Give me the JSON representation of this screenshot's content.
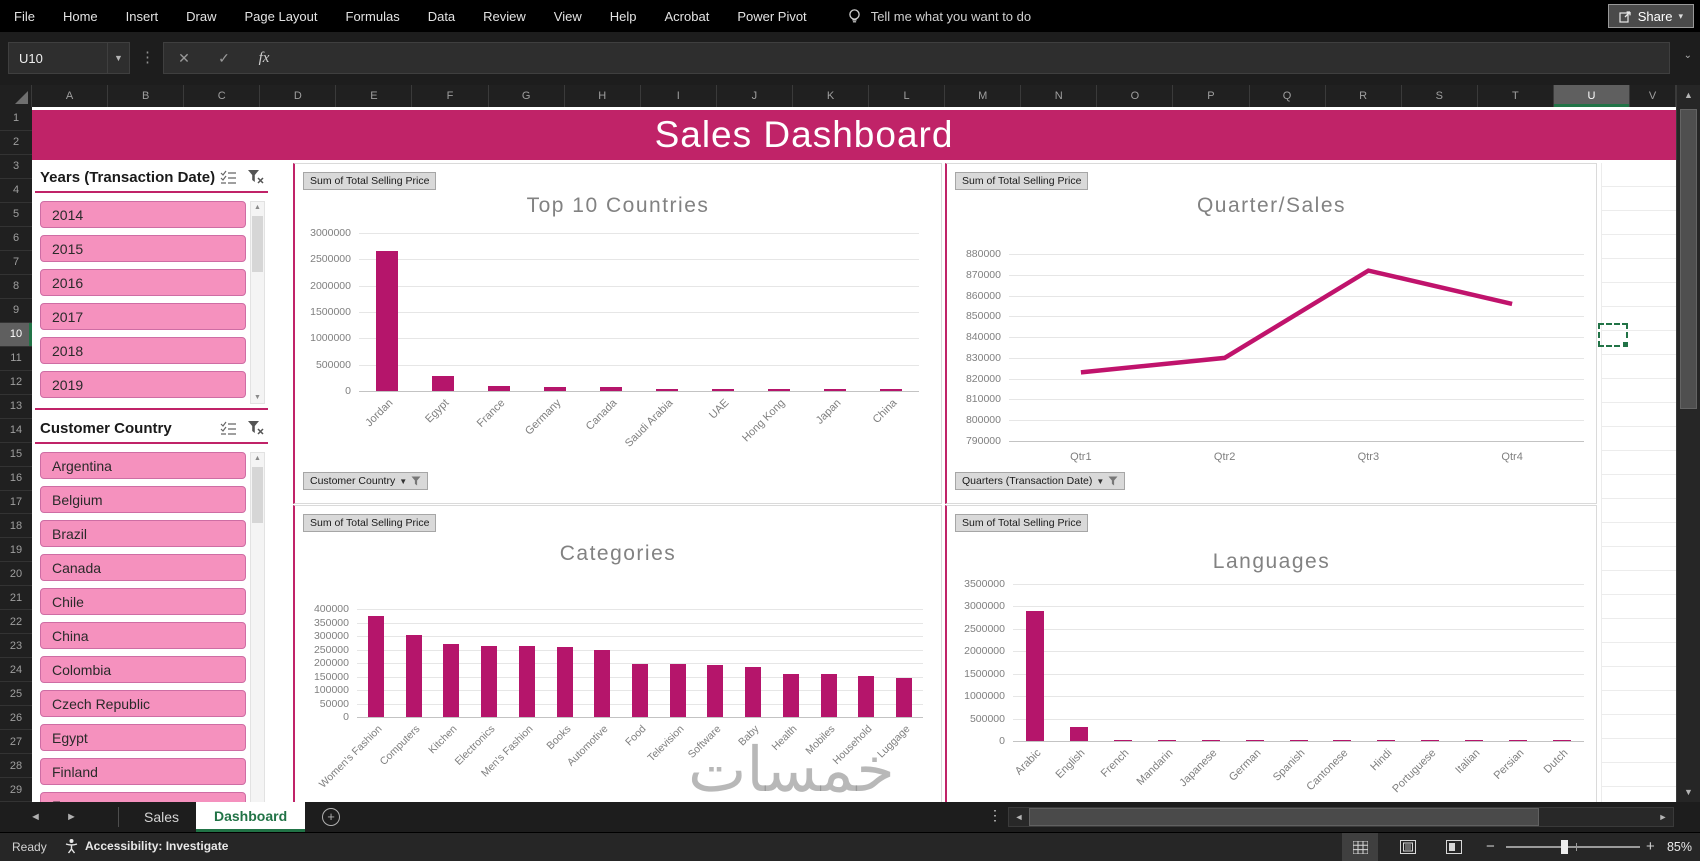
{
  "ribbon": {
    "menus": [
      "File",
      "Home",
      "Insert",
      "Draw",
      "Page Layout",
      "Formulas",
      "Data",
      "Review",
      "View",
      "Help",
      "Acrobat",
      "Power Pivot"
    ],
    "tell_me": "Tell me what you want to do",
    "share_label": "Share"
  },
  "formula_bar": {
    "name_box": "U10",
    "formula_value": ""
  },
  "grid": {
    "columns": [
      "A",
      "B",
      "C",
      "D",
      "E",
      "F",
      "G",
      "H",
      "I",
      "J",
      "K",
      "L",
      "M",
      "N",
      "O",
      "P",
      "Q",
      "R",
      "S",
      "T",
      "U",
      "V"
    ],
    "row_count": 29,
    "selected_column": "U",
    "selected_row": 10,
    "active_cell": "U10"
  },
  "banner": {
    "title": "Sales Dashboard"
  },
  "slicers": [
    {
      "title": "Years (Transaction Date)",
      "items": [
        "2014",
        "2015",
        "2016",
        "2017",
        "2018",
        "2019"
      ]
    },
    {
      "title": "Customer Country",
      "items": [
        "Argentina",
        "Belgium",
        "Brazil",
        "Canada",
        "Chile",
        "China",
        "Colombia",
        "Czech Republic",
        "Egypt",
        "Finland",
        "France"
      ]
    }
  ],
  "chart_data": [
    {
      "type": "bar",
      "title": "Top 10 Countries",
      "field_button": "Sum of Total Selling Price",
      "filter_button": "Customer Country",
      "categories": [
        "Jordan",
        "Egypt",
        "France",
        "Germany",
        "Canada",
        "Saudi Arabia",
        "UAE",
        "Hong Kong",
        "Japan",
        "China"
      ],
      "values": [
        2650000,
        290000,
        100000,
        70000,
        70000,
        45000,
        42000,
        40000,
        40000,
        40000
      ],
      "ylabel": "",
      "xlabel": "",
      "ylim": [
        0,
        3000000
      ],
      "ytick_step": 500000,
      "grid": true,
      "legend": "none"
    },
    {
      "type": "line",
      "title": "Quarter/Sales",
      "field_button": "Sum of Total Selling Price",
      "filter_button": "Quarters (Transaction Date)",
      "categories": [
        "Qtr1",
        "Qtr2",
        "Qtr3",
        "Qtr4"
      ],
      "values": [
        823000,
        830000,
        872000,
        856000
      ],
      "ylabel": "",
      "xlabel": "",
      "ylim": [
        790000,
        880000
      ],
      "ytick_step": 10000,
      "grid": true,
      "legend": "none"
    },
    {
      "type": "bar",
      "title": "Categories",
      "field_button": "Sum of Total Selling Price",
      "filter_button": "",
      "categories": [
        "Women's Fashion",
        "Computers",
        "Kitchen",
        "Electronics",
        "Men's Fashion",
        "Books",
        "Automotive",
        "Food",
        "Television",
        "Software",
        "Baby",
        "Health",
        "Mobiles",
        "Household",
        "Luggage"
      ],
      "values": [
        375000,
        305000,
        270000,
        262000,
        262000,
        260000,
        247000,
        198000,
        197000,
        193000,
        185000,
        161000,
        160000,
        152000,
        143000
      ],
      "ylabel": "",
      "xlabel": "",
      "ylim": [
        0,
        400000
      ],
      "ytick_step": 50000,
      "grid": true,
      "legend": "none"
    },
    {
      "type": "bar",
      "title": "Languages",
      "field_button": "Sum of Total Selling Price",
      "filter_button": "",
      "categories": [
        "Arabic",
        "English",
        "French",
        "Mandarin",
        "Japanese",
        "German",
        "Spanish",
        "Cantonese",
        "Hindi",
        "Portuguese",
        "Italian",
        "Persian",
        "Dutch"
      ],
      "values": [
        2900000,
        320000,
        30000,
        25000,
        22000,
        20000,
        18000,
        15000,
        12000,
        10000,
        8000,
        6000,
        5000
      ],
      "ylabel": "",
      "xlabel": "",
      "ylim": [
        0,
        3500000
      ],
      "ytick_step": 500000,
      "grid": true,
      "legend": "none"
    }
  ],
  "sheet_tabs": {
    "tabs": [
      "Sales",
      "Dashboard"
    ],
    "active": "Dashboard"
  },
  "status_bar": {
    "mode": "Ready",
    "accessibility": "Accessibility: Investigate",
    "zoom": "85%"
  },
  "watermark": "خمسات",
  "colors": {
    "banner": "#C02368",
    "bar": "#B5156B",
    "slicer_fill": "#F591BE",
    "accent_green": "#217346"
  }
}
